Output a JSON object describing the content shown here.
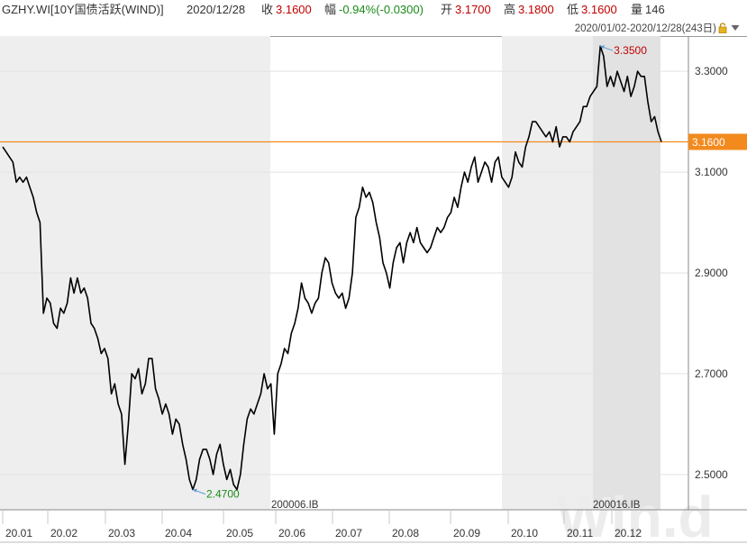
{
  "header": {
    "security": "GZHY.WI[10Y国债活跃(WIND)]",
    "date": "2020/12/28",
    "close_label": "收",
    "close_value": "3.1600",
    "change_label": "幅",
    "change_value": "-0.94%(-0.0300)",
    "open_label": "开",
    "open_value": "3.1700",
    "high_label": "高",
    "high_value": "3.1800",
    "low_label": "低",
    "low_value": "3.1600",
    "volume_label": "量",
    "volume_value": "146"
  },
  "range_bar": {
    "text": "2020/01/02-2020/12/28(243日)",
    "icons": [
      "lock-icon",
      "chevron-down-icon"
    ]
  },
  "watermark": "Win.d",
  "chart_data": {
    "type": "line",
    "series": [
      {
        "values": [
          3.15,
          3.14,
          3.13,
          3.12,
          3.08,
          3.09,
          3.08,
          3.09,
          3.07,
          3.05,
          3.02,
          3.0,
          2.82,
          2.85,
          2.84,
          2.8,
          2.79,
          2.83,
          2.82,
          2.84,
          2.89,
          2.86,
          2.89,
          2.86,
          2.87,
          2.85,
          2.8,
          2.79,
          2.77,
          2.74,
          2.75,
          2.73,
          2.66,
          2.68,
          2.64,
          2.62,
          2.52,
          2.6,
          2.7,
          2.69,
          2.71,
          2.66,
          2.68,
          2.73,
          2.73,
          2.67,
          2.65,
          2.62,
          2.64,
          2.62,
          2.58,
          2.61,
          2.6,
          2.56,
          2.53,
          2.49,
          2.47,
          2.49,
          2.53,
          2.55,
          2.55,
          2.53,
          2.5,
          2.54,
          2.56,
          2.52,
          2.49,
          2.51,
          2.48,
          2.47,
          2.5,
          2.56,
          2.61,
          2.63,
          2.62,
          2.64,
          2.66,
          2.7,
          2.67,
          2.68,
          2.58,
          2.7,
          2.72,
          2.75,
          2.74,
          2.78,
          2.8,
          2.83,
          2.88,
          2.85,
          2.84,
          2.82,
          2.84,
          2.85,
          2.9,
          2.93,
          2.92,
          2.88,
          2.86,
          2.85,
          2.86,
          2.83,
          2.85,
          2.9,
          3.01,
          3.03,
          3.07,
          3.05,
          3.06,
          3.04,
          3.0,
          2.97,
          2.92,
          2.9,
          2.87,
          2.92,
          2.95,
          2.96,
          2.92,
          2.96,
          2.98,
          2.96,
          2.99,
          2.96,
          2.95,
          2.94,
          2.95,
          2.97,
          2.99,
          2.98,
          2.99,
          3.01,
          3.02,
          3.05,
          3.03,
          3.07,
          3.1,
          3.08,
          3.11,
          3.13,
          3.08,
          3.1,
          3.12,
          3.11,
          3.08,
          3.12,
          3.13,
          3.09,
          3.08,
          3.07,
          3.09,
          3.14,
          3.12,
          3.11,
          3.15,
          3.17,
          3.2,
          3.2,
          3.19,
          3.18,
          3.17,
          3.18,
          3.16,
          3.19,
          3.15,
          3.17,
          3.17,
          3.16,
          3.18,
          3.19,
          3.2,
          3.23,
          3.23,
          3.25,
          3.26,
          3.27,
          3.35,
          3.33,
          3.27,
          3.29,
          3.27,
          3.3,
          3.28,
          3.26,
          3.29,
          3.25,
          3.27,
          3.3,
          3.29,
          3.29,
          3.24,
          3.2,
          3.21,
          3.18,
          3.16
        ]
      }
    ],
    "months": [
      "20.01",
      "20.02",
      "20.03",
      "20.04",
      "20.05",
      "20.06",
      "20.07",
      "20.08",
      "20.09",
      "20.10",
      "20.11",
      "20.12"
    ],
    "y_ticks": [
      "3.3000",
      "3.1000",
      "2.9000",
      "2.7000",
      "2.5000"
    ],
    "ylim": [
      2.43,
      3.37
    ],
    "last_value": "3.1600",
    "annotations": [
      {
        "label": "3.3500",
        "value": 3.35,
        "type": "high",
        "color": "#c00000"
      },
      {
        "label": "2.4700",
        "value": 2.47,
        "type": "low",
        "color": "#1a8a1a"
      }
    ],
    "contract_labels": [
      "200006.IB",
      "200016.IB"
    ],
    "colors": {
      "line": "#000000",
      "last_line": "#f28a1e",
      "last_box": "#f28a1e",
      "shade": "#eeeeee",
      "grid": "#e2e2e2"
    },
    "grid": true
  }
}
